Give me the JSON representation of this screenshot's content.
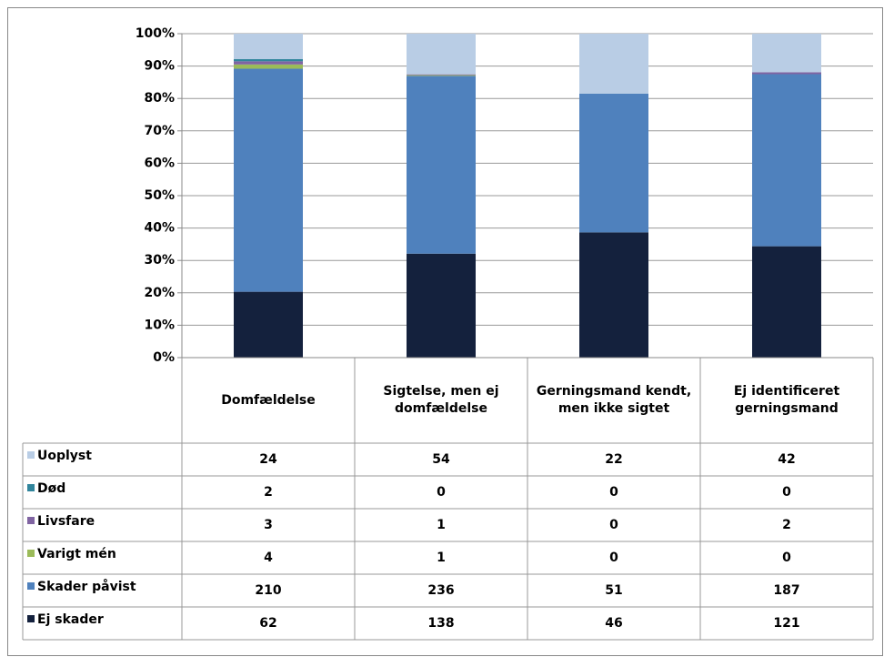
{
  "chart_data": {
    "type": "bar",
    "stacking": "percent",
    "categories": [
      "Domfældelse",
      "Sigtelse, men ej domfældelse",
      "Gerningsmand kendt, men ikke sigtet",
      "Ej identificeret gerningsmand"
    ],
    "series": [
      {
        "name": "Ej skader",
        "color": "#14213d",
        "values": [
          62,
          138,
          46,
          121
        ]
      },
      {
        "name": "Skader påvist",
        "color": "#4f81bd",
        "values": [
          210,
          236,
          51,
          187
        ]
      },
      {
        "name": "Varigt mén",
        "color": "#9bbb59",
        "values": [
          4,
          1,
          0,
          0
        ]
      },
      {
        "name": "Livsfare",
        "color": "#8064a2",
        "values": [
          3,
          1,
          0,
          2
        ]
      },
      {
        "name": "Død",
        "color": "#31859c",
        "values": [
          2,
          0,
          0,
          0
        ]
      },
      {
        "name": "Uoplyst",
        "color": "#b9cde5",
        "values": [
          24,
          54,
          22,
          42
        ]
      }
    ],
    "ylim": [
      0,
      100
    ],
    "yticks": [
      {
        "value": 0,
        "label": "0%"
      },
      {
        "value": 10,
        "label": "10%"
      },
      {
        "value": 20,
        "label": "20%"
      },
      {
        "value": 30,
        "label": "30%"
      },
      {
        "value": 40,
        "label": "40%"
      },
      {
        "value": 50,
        "label": "50%"
      },
      {
        "value": 60,
        "label": "60%"
      },
      {
        "value": 70,
        "label": "70%"
      },
      {
        "value": 80,
        "label": "80%"
      },
      {
        "value": 90,
        "label": "90%"
      },
      {
        "value": 100,
        "label": "100%"
      }
    ],
    "grid": true,
    "data_table": true
  }
}
